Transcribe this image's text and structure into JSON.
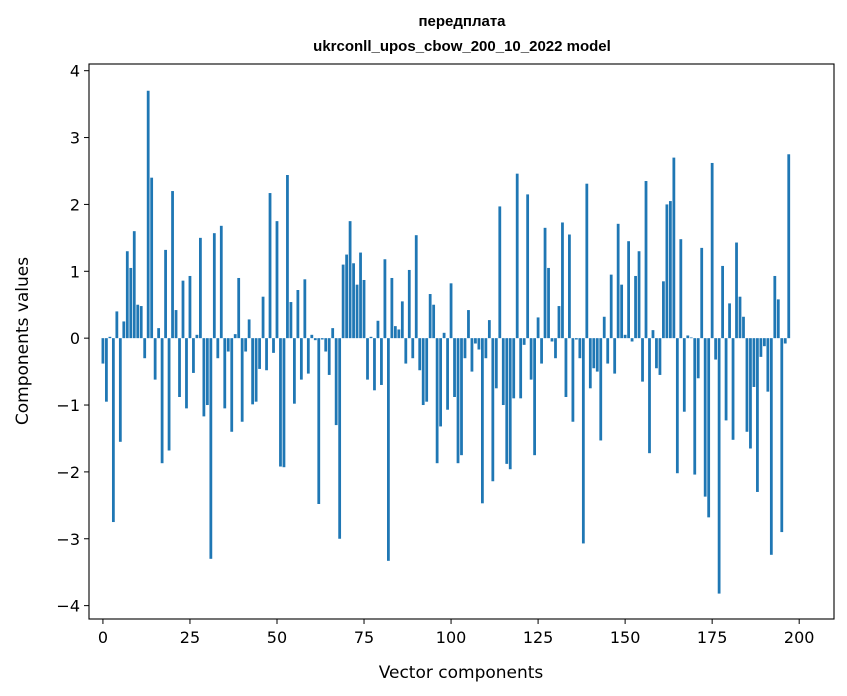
{
  "chart_data": {
    "type": "bar",
    "title": [
      "передплата",
      "ukrconll_upos_cbow_200_10_2022 model"
    ],
    "xlabel": "Vector components",
    "ylabel": "Components values",
    "xlim": [
      -4,
      210
    ],
    "ylim": [
      -4.2,
      4.1
    ],
    "xticks": [
      0,
      25,
      50,
      75,
      100,
      125,
      150,
      175,
      200
    ],
    "xtick_labels": [
      "0",
      "25",
      "50",
      "75",
      "100",
      "125",
      "150",
      "175",
      "200"
    ],
    "yticks": [
      4,
      3,
      2,
      1,
      0,
      -1,
      -2,
      -3,
      -4
    ],
    "ytick_labels": [
      "4",
      "3",
      "2",
      "1",
      "0",
      "−1",
      "−2",
      "−3",
      "−4"
    ],
    "bar_color": "#1f77b4",
    "grid": false,
    "legend": null,
    "values": [
      -0.38,
      -0.95,
      0.02,
      -2.75,
      0.4,
      -1.55,
      0.25,
      1.3,
      1.05,
      1.6,
      0.5,
      0.48,
      -0.3,
      3.7,
      2.4,
      -0.62,
      0.15,
      -1.87,
      1.32,
      -1.68,
      2.2,
      0.42,
      -0.88,
      0.86,
      -1.05,
      0.93,
      -0.52,
      0.05,
      1.5,
      -1.17,
      -1.0,
      -3.3,
      1.57,
      -0.3,
      1.68,
      -1.05,
      -0.2,
      -1.4,
      0.06,
      0.9,
      -1.25,
      -0.2,
      0.28,
      -0.99,
      -0.95,
      -0.46,
      0.62,
      -0.48,
      2.17,
      -0.22,
      1.75,
      -1.92,
      -1.93,
      2.44,
      0.54,
      -0.98,
      0.72,
      -0.62,
      0.88,
      -0.53,
      0.05,
      -0.03,
      -2.48,
      -0.02,
      -0.2,
      -0.55,
      0.15,
      -1.3,
      -3.0,
      1.1,
      1.25,
      1.75,
      1.12,
      0.8,
      1.28,
      0.87,
      -0.62,
      0.02,
      -0.78,
      0.26,
      -0.7,
      1.18,
      -3.33,
      0.9,
      0.18,
      0.13,
      0.55,
      -0.38,
      1.02,
      -0.3,
      1.54,
      -0.48,
      -1.0,
      -0.95,
      0.66,
      0.5,
      -1.87,
      -1.32,
      0.08,
      -1.07,
      0.82,
      -0.88,
      -1.87,
      -1.75,
      -0.3,
      0.42,
      -0.5,
      -0.08,
      -0.17,
      -2.47,
      -0.3,
      0.27,
      -2.14,
      -0.75,
      1.97,
      -1.0,
      -1.88,
      -1.96,
      -0.9,
      2.46,
      -0.9,
      -0.1,
      2.15,
      -0.62,
      -1.75,
      0.31,
      -0.38,
      1.65,
      1.05,
      -0.05,
      -0.3,
      0.48,
      1.73,
      -0.88,
      1.55,
      -1.25,
      -0.02,
      -0.3,
      -3.07,
      2.31,
      -0.75,
      -0.45,
      -0.5,
      -1.53,
      0.32,
      -0.38,
      0.95,
      -0.53,
      1.71,
      0.8,
      0.05,
      1.45,
      -0.05,
      0.93,
      1.3,
      -0.65,
      2.35,
      -1.72,
      0.12,
      -0.45,
      -0.55,
      0.85,
      2.0,
      2.05,
      2.7,
      -2.02,
      1.48,
      -1.1,
      0.04,
      0.01,
      -2.04,
      -0.6,
      1.35,
      -2.37,
      -2.68,
      2.62,
      -0.32,
      -3.82,
      1.08,
      -1.23,
      0.52,
      -1.52,
      1.43,
      0.62,
      0.32,
      -1.4,
      -1.65,
      -0.73,
      -2.3,
      -0.28,
      -0.12,
      -0.8,
      -3.24,
      0.93,
      0.58,
      -2.9,
      -0.08,
      2.75
    ]
  }
}
